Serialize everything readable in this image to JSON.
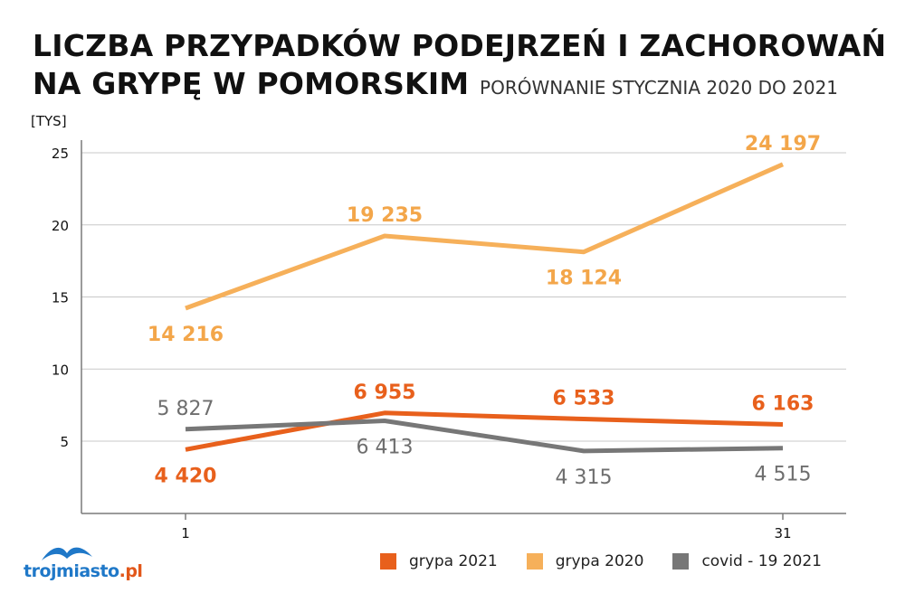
{
  "header": {
    "title_line1": "LICZBA PRZYPADKÓW PODEJRZEŃ I ZACHOROWAŃ",
    "title_line2": "NA GRYPĘ W POMORSKIM",
    "subtitle": "PORÓWNANIE STYCZNIA 2020 DO 2021"
  },
  "chart_data": {
    "type": "line",
    "title": "LICZBA PRZYPADKÓW PODEJRZEŃ I ZACHOROWAŃ NA GRYPĘ W POMORSKIM",
    "subtitle": "PORÓWNANIE STYCZNIA 2020 DO 2021",
    "unit_label": "[TYS]",
    "xlabel": "",
    "ylabel": "",
    "x_ticks": [
      "1",
      "31"
    ],
    "x_range": [
      1,
      31
    ],
    "ylim": [
      0,
      25
    ],
    "y_ticks": [
      5,
      10,
      15,
      20,
      25
    ],
    "grid": true,
    "legend_position": "bottom-right",
    "series": [
      {
        "name": "grypa 2021",
        "color": "#e8601c",
        "x": [
          1,
          11,
          21,
          31
        ],
        "values": [
          4.42,
          6.955,
          6.533,
          6.163
        ],
        "labels": [
          "4 420",
          "6 955",
          "6 533",
          "6 163"
        ],
        "label_placement": [
          "below",
          "above",
          "above",
          "above"
        ]
      },
      {
        "name": "grypa 2020",
        "color": "#f6b05a",
        "x": [
          1,
          11,
          21,
          31
        ],
        "values": [
          14.216,
          19.235,
          18.124,
          24.197
        ],
        "labels": [
          "14 216",
          "19 235",
          "18 124",
          "24 197"
        ],
        "label_placement": [
          "below",
          "above",
          "below",
          "above"
        ]
      },
      {
        "name": "covid - 19 2021",
        "color": "#777777",
        "x": [
          1,
          11,
          21,
          31
        ],
        "values": [
          5.827,
          6.413,
          4.315,
          4.515
        ],
        "labels": [
          "5 827",
          "6 413",
          "4 315",
          "4 515"
        ],
        "label_placement": [
          "above",
          "below",
          "below",
          "below"
        ]
      }
    ]
  },
  "footer": {
    "logo_text_main": "trojmiasto",
    "logo_text_tld": ".pl",
    "logo_color": "#1f78c8",
    "logo_accent": "#e2571a"
  }
}
